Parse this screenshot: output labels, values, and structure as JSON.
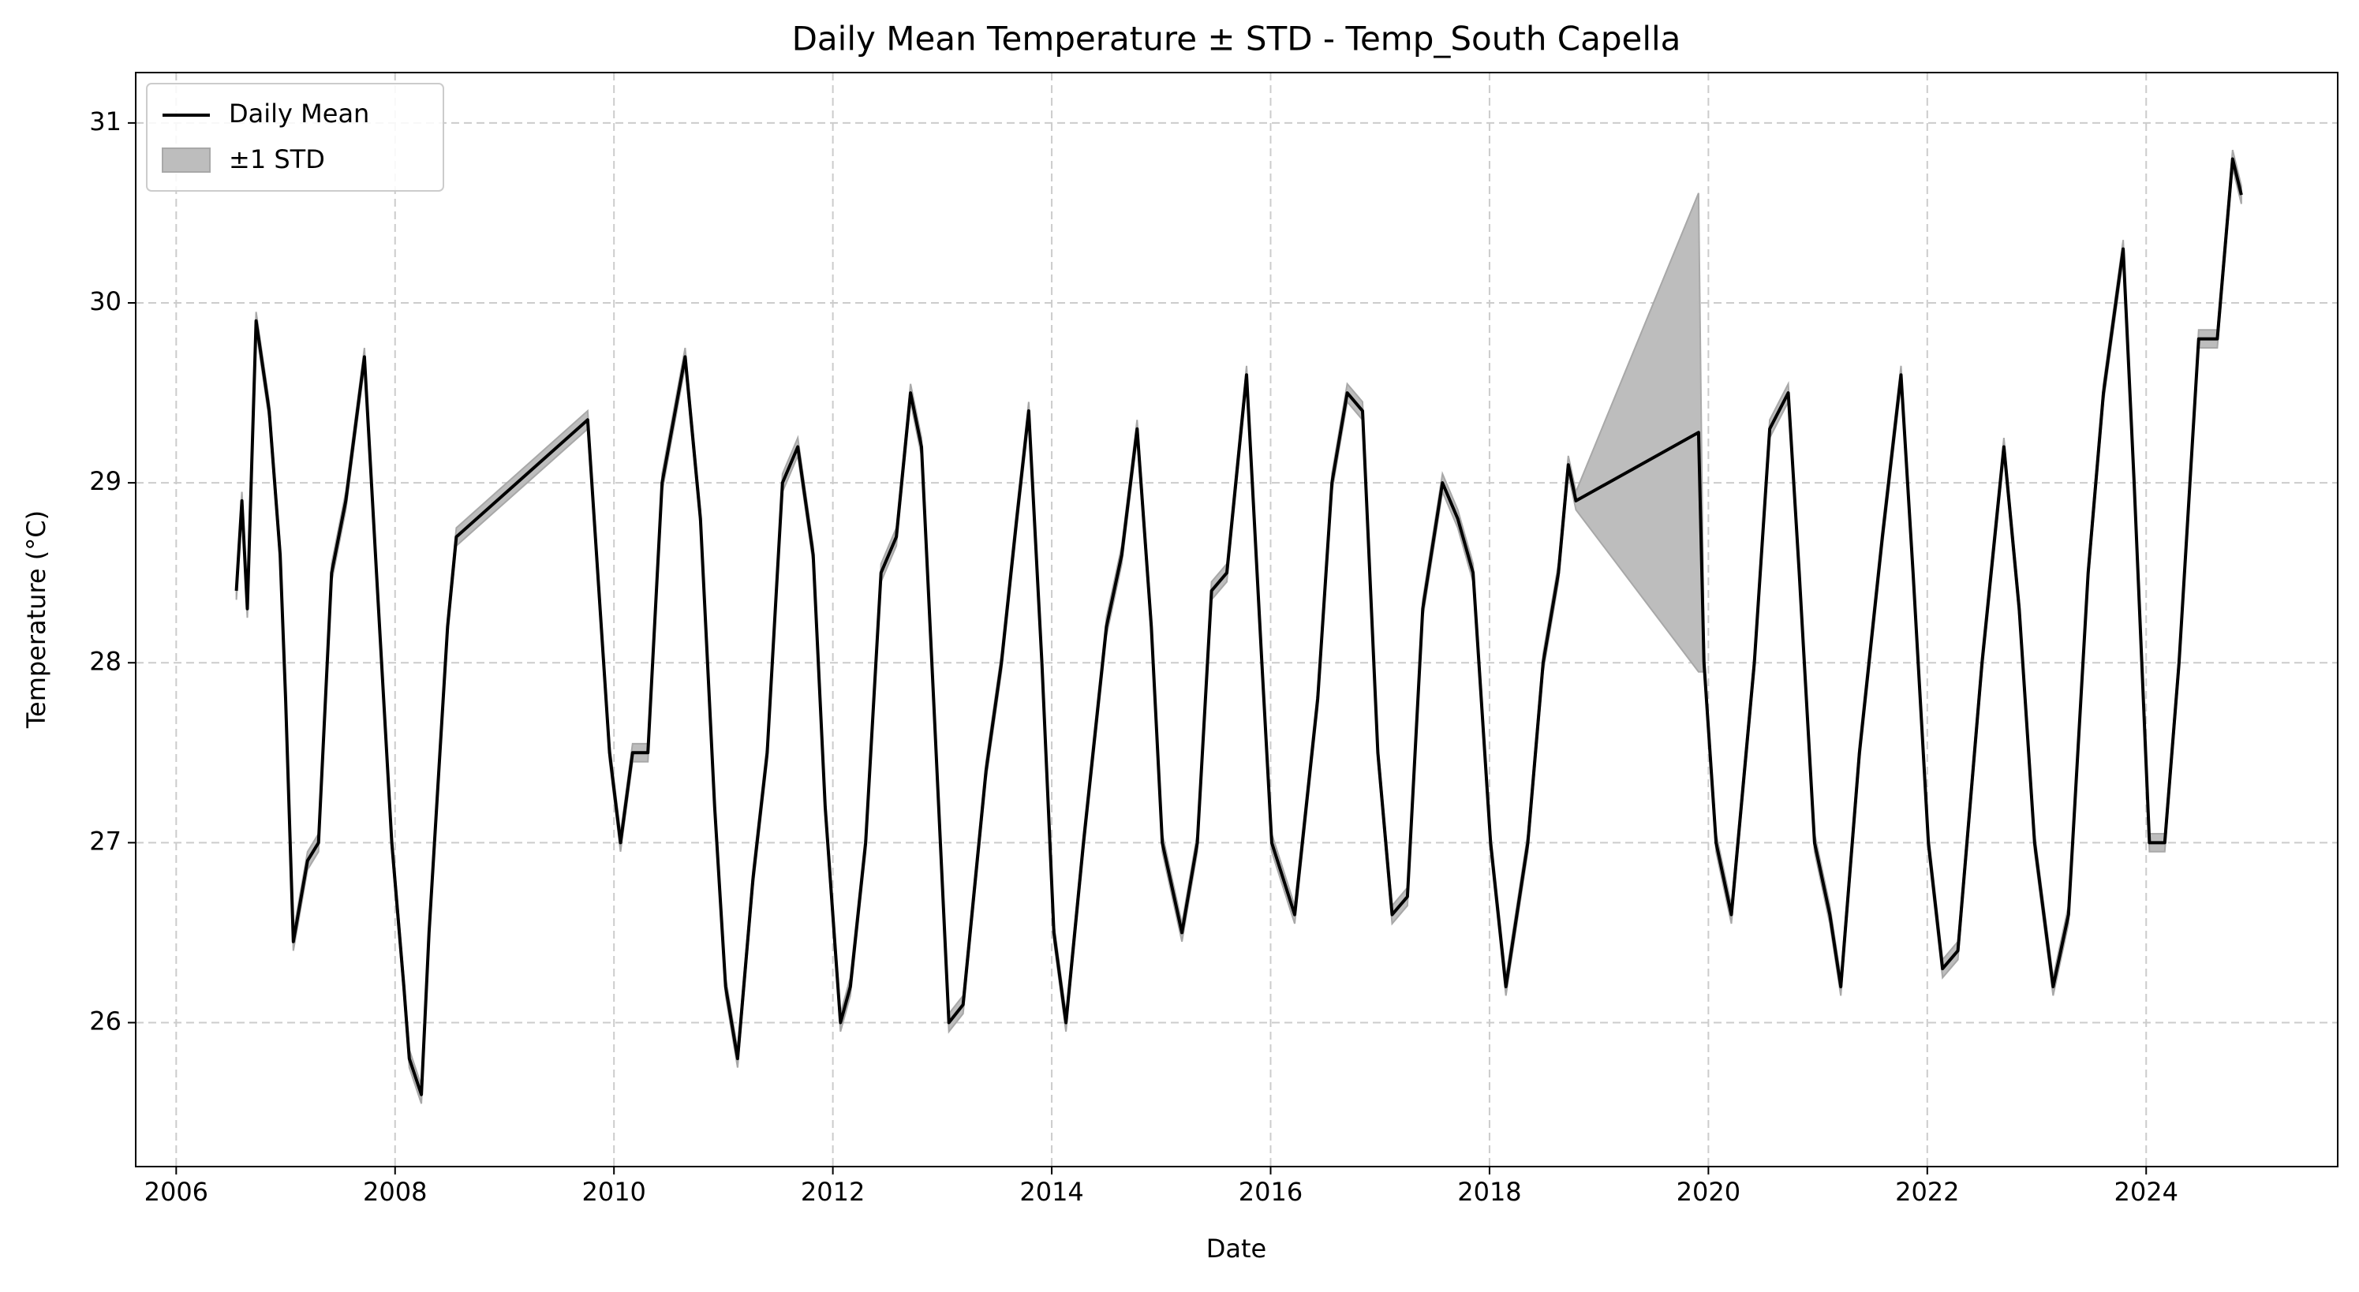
{
  "chart_data": {
    "type": "line_band",
    "title": "Daily Mean Temperature ± STD - Temp_South Capella",
    "xlabel": "Date",
    "ylabel": "Temperature (°C)",
    "x": [
      2006.55,
      2006.6,
      2006.65,
      2006.73,
      2006.85,
      2006.95,
      2007.0,
      2007.07,
      2007.2,
      2007.3,
      2007.42,
      2007.55,
      2007.72,
      2007.83,
      2007.97,
      2008.08,
      2008.13,
      2008.24,
      2008.31,
      2008.41,
      2008.48,
      2008.56,
      2009.76,
      2009.96,
      2010.06,
      2010.17,
      2010.31,
      2010.44,
      2010.65,
      2010.79,
      2010.92,
      2011.02,
      2011.13,
      2011.27,
      2011.4,
      2011.54,
      2011.68,
      2011.82,
      2011.93,
      2012.07,
      2012.16,
      2012.3,
      2012.44,
      2012.58,
      2012.71,
      2012.81,
      2012.92,
      2013.06,
      2013.19,
      2013.4,
      2013.54,
      2013.68,
      2013.79,
      2013.91,
      2014.02,
      2014.13,
      2014.29,
      2014.5,
      2014.64,
      2014.78,
      2014.91,
      2015.01,
      2015.19,
      2015.33,
      2015.46,
      2015.6,
      2015.78,
      2015.92,
      2016.01,
      2016.22,
      2016.43,
      2016.56,
      2016.7,
      2016.84,
      2016.98,
      2017.11,
      2017.25,
      2017.39,
      2017.57,
      2017.71,
      2017.85,
      2018.01,
      2018.15,
      2018.35,
      2018.49,
      2018.63,
      2018.72,
      2018.79,
      2019.91,
      2019.96,
      2020.07,
      2020.21,
      2020.42,
      2020.56,
      2020.73,
      2020.83,
      2020.97,
      2021.11,
      2021.21,
      2021.38,
      2021.59,
      2021.76,
      2021.87,
      2022.01,
      2022.14,
      2022.28,
      2022.5,
      2022.7,
      2022.84,
      2022.98,
      2023.15,
      2023.29,
      2023.47,
      2023.61,
      2023.79,
      2023.89,
      2024.03,
      2024.17,
      2024.3,
      2024.48,
      2024.65,
      2024.79,
      2024.87
    ],
    "series": [
      {
        "name": "Daily Mean",
        "color": "#000000",
        "values": [
          28.4,
          28.9,
          28.3,
          29.9,
          29.4,
          28.6,
          27.8,
          26.45,
          26.9,
          27.0,
          28.5,
          28.9,
          29.7,
          28.5,
          27.0,
          26.2,
          25.8,
          25.6,
          26.5,
          27.5,
          28.2,
          28.7,
          29.35,
          27.5,
          27.0,
          27.5,
          27.5,
          29.0,
          29.7,
          28.8,
          27.2,
          26.2,
          25.8,
          26.8,
          27.5,
          29.0,
          29.2,
          28.6,
          27.2,
          26.0,
          26.2,
          27.0,
          28.5,
          28.7,
          29.5,
          29.2,
          27.8,
          26.0,
          26.1,
          27.4,
          28.0,
          28.8,
          29.4,
          28.0,
          26.5,
          26.0,
          27.0,
          28.2,
          28.6,
          29.3,
          28.2,
          27.0,
          26.5,
          27.0,
          28.4,
          28.5,
          29.6,
          28.0,
          27.0,
          26.6,
          27.8,
          29.0,
          29.5,
          29.4,
          27.5,
          26.6,
          26.7,
          28.3,
          29.0,
          28.8,
          28.5,
          27.0,
          26.2,
          27.0,
          28.0,
          28.5,
          29.1,
          28.9,
          29.28,
          28.0,
          27.0,
          26.6,
          28.0,
          29.3,
          29.5,
          28.5,
          27.0,
          26.6,
          26.2,
          27.5,
          28.7,
          29.6,
          28.5,
          27.0,
          26.3,
          26.4,
          28.0,
          29.2,
          28.3,
          27.0,
          26.2,
          26.6,
          28.5,
          29.5,
          30.3,
          29.0,
          27.0,
          27.0,
          28.0,
          29.8,
          29.8,
          30.8,
          30.6
        ]
      }
    ],
    "band": {
      "name": "±1 STD",
      "color": "#bdbdbd",
      "values": [
        0.05,
        0.05,
        0.05,
        0.05,
        0.05,
        0.05,
        0.05,
        0.05,
        0.05,
        0.05,
        0.05,
        0.05,
        0.05,
        0.05,
        0.05,
        0.05,
        0.05,
        0.05,
        0.05,
        0.05,
        0.05,
        0.05,
        0.05,
        0.05,
        0.05,
        0.05,
        0.05,
        0.05,
        0.05,
        0.05,
        0.05,
        0.05,
        0.05,
        0.05,
        0.05,
        0.05,
        0.05,
        0.05,
        0.05,
        0.05,
        0.05,
        0.05,
        0.05,
        0.05,
        0.05,
        0.05,
        0.05,
        0.05,
        0.05,
        0.05,
        0.05,
        0.05,
        0.05,
        0.05,
        0.05,
        0.05,
        0.05,
        0.05,
        0.05,
        0.05,
        0.05,
        0.05,
        0.05,
        0.05,
        0.05,
        0.05,
        0.05,
        0.05,
        0.05,
        0.05,
        0.05,
        0.05,
        0.05,
        0.05,
        0.05,
        0.05,
        0.05,
        0.05,
        0.05,
        0.05,
        0.05,
        0.05,
        0.05,
        0.05,
        0.05,
        0.05,
        0.05,
        0.05,
        1.33,
        0.05,
        0.05,
        0.05,
        0.05,
        0.05,
        0.05,
        0.05,
        0.05,
        0.05,
        0.05,
        0.05,
        0.05,
        0.05,
        0.05,
        0.05,
        0.05,
        0.05,
        0.05,
        0.05,
        0.05,
        0.05,
        0.05,
        0.05,
        0.05,
        0.05,
        0.05,
        0.05,
        0.05,
        0.05,
        0.05,
        0.05,
        0.05,
        0.05,
        0.05
      ]
    },
    "xlim": [
      2005.63,
      2025.75
    ],
    "xticks": [
      2006,
      2008,
      2010,
      2012,
      2014,
      2016,
      2018,
      2020,
      2022,
      2024
    ],
    "ylim": [
      25.2,
      31.28
    ],
    "yticks": [
      26,
      27,
      28,
      29,
      30,
      31
    ],
    "grid": true,
    "legend": "upper left"
  }
}
